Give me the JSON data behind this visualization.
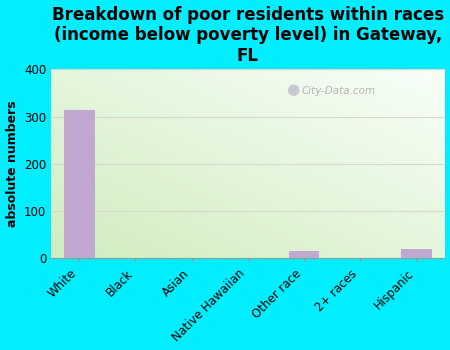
{
  "title": "Breakdown of poor residents within races\n(income below poverty level) in Gateway,\nFL",
  "ylabel": "absolute numbers",
  "categories": [
    "White",
    "Black",
    "Asian",
    "Native Hawaiian",
    "Other race",
    "2+ races",
    "Hispanic"
  ],
  "values": [
    315,
    0,
    0,
    0,
    15,
    0,
    20
  ],
  "bar_color": "#c0a8d0",
  "ylim": [
    0,
    400
  ],
  "yticks": [
    0,
    100,
    200,
    300,
    400
  ],
  "background_color": "#00eeff",
  "plot_bg_topleft": "#d0ecc0",
  "plot_bg_bottomright": "#f8fff8",
  "watermark": "City-Data.com",
  "title_fontsize": 12,
  "ylabel_fontsize": 9,
  "tick_fontsize": 8.5
}
